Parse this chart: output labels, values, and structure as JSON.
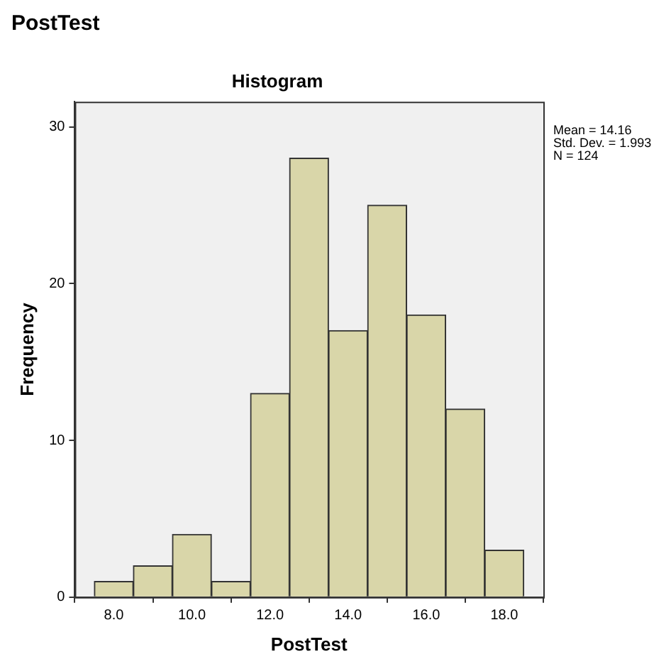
{
  "chart_data": {
    "type": "histogram",
    "title": "Histogram",
    "xlabel": "PostTest",
    "ylabel": "Frequency",
    "annotations": [
      "PostTest",
      "Mean = 14.16",
      "Std. Dev. = 1.993",
      "N = 124"
    ],
    "bins": [
      7.5,
      8.5,
      9.5,
      10.5,
      11.5,
      12.5,
      13.5,
      14.5,
      15.5,
      16.5,
      17.5,
      18.5
    ],
    "values": [
      1,
      2,
      4,
      1,
      13,
      28,
      17,
      25,
      18,
      12,
      3
    ],
    "color": "#d9d6a9",
    "xlim": [
      7,
      19
    ],
    "xticks": [
      {
        "value": 8,
        "label": "8.0"
      },
      {
        "value": 10,
        "label": "10.0"
      },
      {
        "value": 12,
        "label": "12.0"
      },
      {
        "value": 14,
        "label": "14.0"
      },
      {
        "value": 16,
        "label": "16.0"
      },
      {
        "value": 18,
        "label": "18.0"
      }
    ],
    "ylim": [
      0,
      31.6
    ],
    "yticks": [
      0,
      10,
      20,
      30
    ],
    "grid": false,
    "legend": false
  }
}
